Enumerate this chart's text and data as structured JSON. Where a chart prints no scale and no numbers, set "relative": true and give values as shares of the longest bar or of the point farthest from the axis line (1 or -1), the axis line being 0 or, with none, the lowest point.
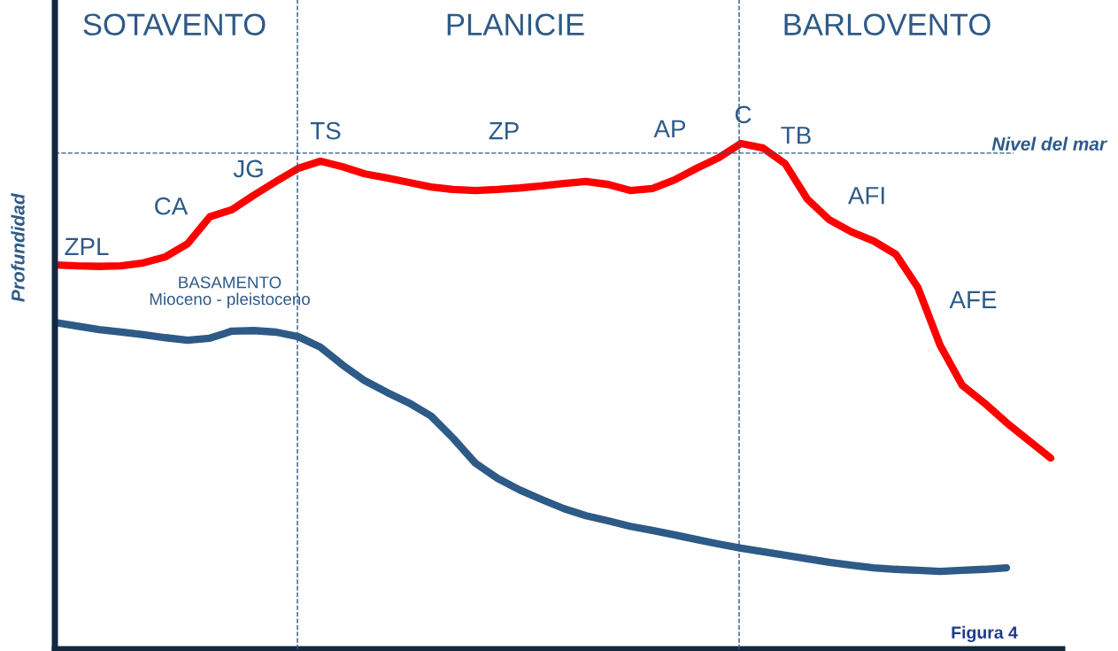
{
  "chart_data": {
    "type": "line",
    "relative": true,
    "ylabel": "Profundidad",
    "categories": [
      null,
      null,
      null,
      null,
      null,
      null,
      null,
      null,
      null,
      null,
      null,
      null,
      null,
      null,
      null,
      null,
      null,
      null,
      null,
      null,
      null,
      null,
      null,
      null,
      null,
      null,
      null,
      null,
      null,
      null,
      null,
      null,
      null,
      null,
      null,
      null,
      null,
      null,
      null,
      null,
      null,
      null,
      null,
      null,
      null,
      null
    ],
    "series": [
      {
        "color": "#ff0000",
        "values": [
          0.76,
          0.758,
          0.757,
          0.758,
          0.764,
          0.776,
          0.802,
          0.855,
          0.869,
          0.898,
          0.925,
          0.951,
          0.965,
          0.954,
          0.94,
          0.932,
          0.923,
          0.914,
          0.909,
          0.907,
          0.909,
          0.912,
          0.916,
          0.921,
          0.925,
          0.919,
          0.907,
          0.911,
          0.928,
          0.951,
          0.972,
          1.0,
          0.991,
          0.96,
          0.89,
          0.849,
          0.825,
          0.807,
          0.781,
          0.715,
          0.601,
          0.522,
          0.487,
          0.448,
          0.413,
          0.378
        ]
      },
      {
        "color": "#2e5a87",
        "values": [
          0.646,
          0.639,
          0.632,
          0.627,
          0.622,
          0.616,
          0.611,
          0.615,
          0.629,
          0.63,
          0.627,
          0.618,
          0.597,
          0.562,
          0.531,
          0.508,
          0.487,
          0.461,
          0.417,
          0.368,
          0.338,
          0.315,
          0.296,
          0.278,
          0.264,
          0.254,
          0.243,
          0.235,
          0.226,
          0.217,
          0.208,
          0.2,
          0.193,
          0.186,
          0.179,
          0.172,
          0.166,
          0.161,
          0.158,
          0.156,
          0.154,
          0.156,
          0.158,
          0.161,
          null,
          null
        ]
      }
    ],
    "ref_lines": [
      {
        "axis": "y",
        "value": 0.981,
        "label": "Nivel del mar",
        "color": "#2e5a87",
        "line_style": "dashed"
      }
    ],
    "annotations": [
      "SOTAVENTO",
      "PLANICIE",
      "BARLOVENTO",
      "ZPL",
      "CA",
      "JG",
      "TS",
      "ZP",
      "AP",
      "C",
      "TB",
      "AFI",
      "AFE",
      "BASAMENTO\nMioceno - pleistoceno",
      "Figura 4"
    ],
    "marker": "none",
    "line_style": "solid"
  }
}
